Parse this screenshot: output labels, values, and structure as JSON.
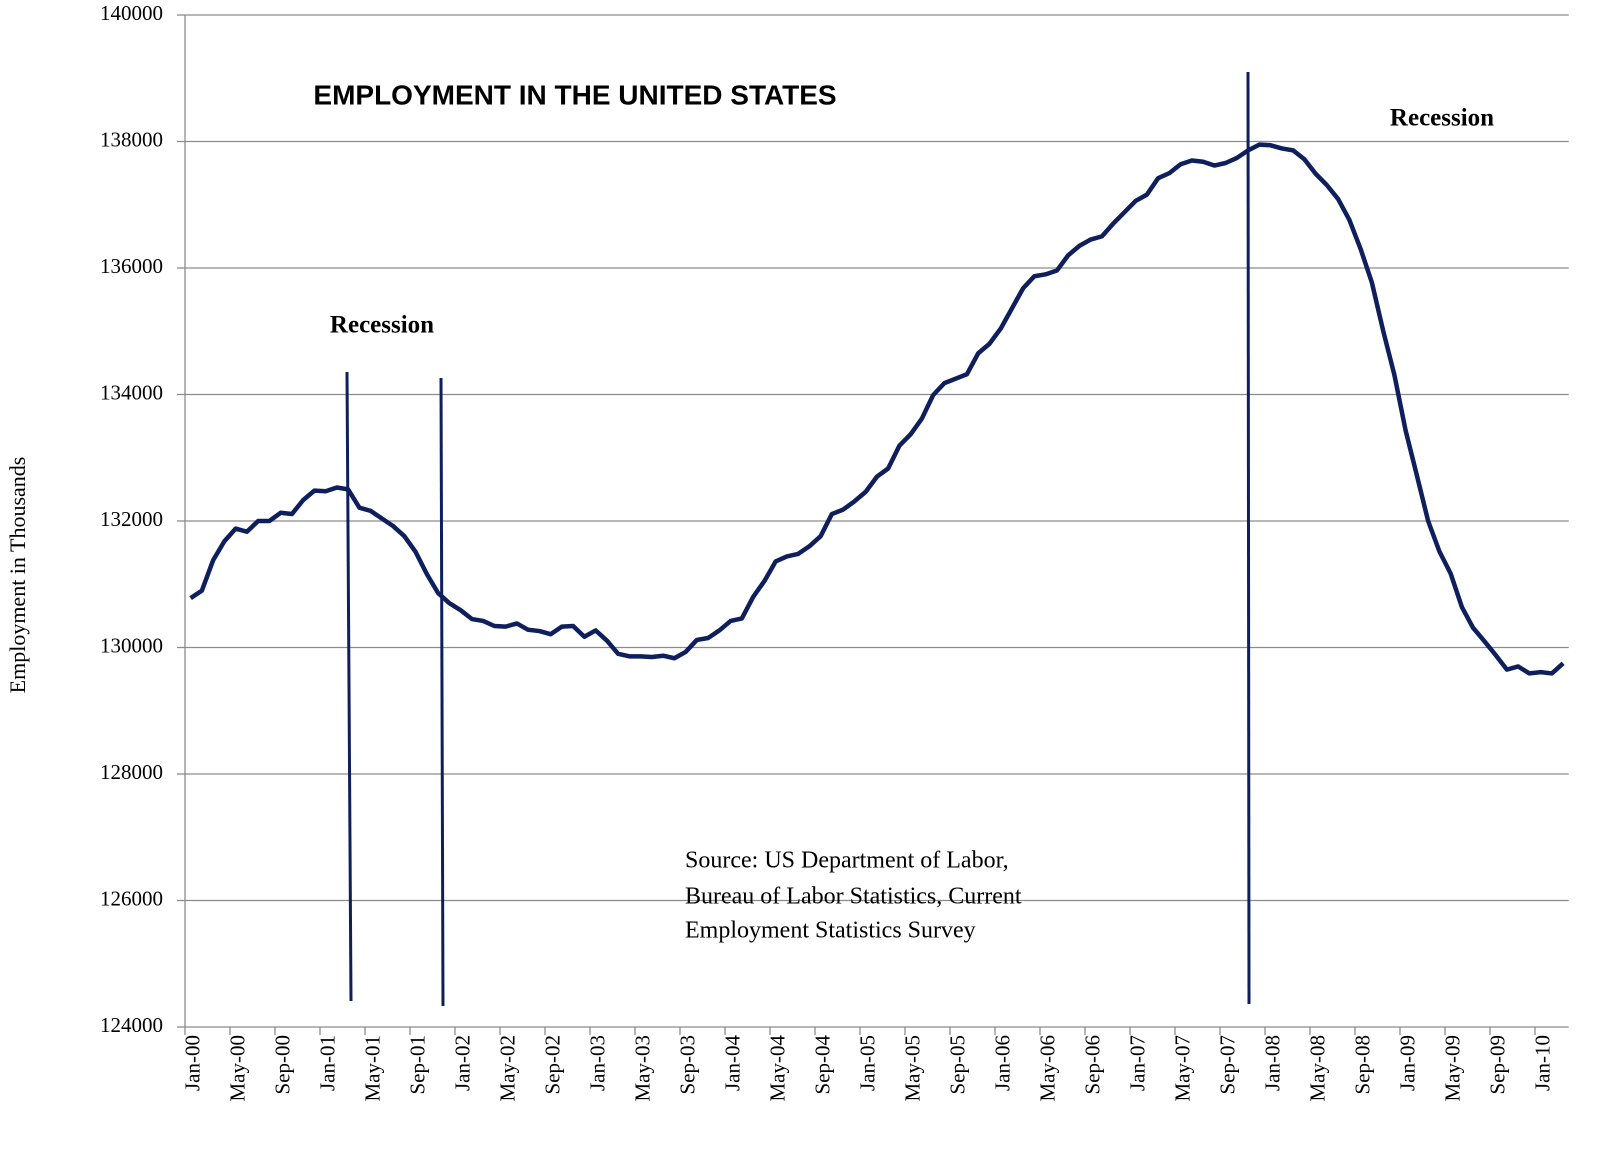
{
  "chart_data": {
    "type": "line",
    "title": "EMPLOYMENT IN THE UNITED STATES",
    "y_label": "Employment in Thousands",
    "annotations": [
      "Recession",
      "Recession"
    ],
    "source": [
      "Source: US Department of Labor,",
      "Bureau of Labor Statistics, Current",
      "Employment Statistics Survey"
    ],
    "categories": [
      "Jan-00",
      null,
      null,
      null,
      "May-00",
      null,
      null,
      null,
      "Sep-00",
      null,
      null,
      null,
      "Jan-01",
      null,
      null,
      null,
      "May-01",
      null,
      null,
      null,
      "Sep-01",
      null,
      null,
      null,
      "Jan-02",
      null,
      null,
      null,
      "May-02",
      null,
      null,
      null,
      "Sep-02",
      null,
      null,
      null,
      "Jan-03",
      null,
      null,
      null,
      "May-03",
      null,
      null,
      null,
      "Sep-03",
      null,
      null,
      null,
      "Jan-04",
      null,
      null,
      null,
      "May-04",
      null,
      null,
      null,
      "Sep-04",
      null,
      null,
      null,
      "Jan-05",
      null,
      null,
      null,
      "May-05",
      null,
      null,
      null,
      "Sep-05",
      null,
      null,
      null,
      "Jan-06",
      null,
      null,
      null,
      "May-06",
      null,
      null,
      null,
      "Sep-06",
      null,
      null,
      null,
      "Jan-07",
      null,
      null,
      null,
      "May-07",
      null,
      null,
      null,
      "Sep-07",
      null,
      null,
      null,
      "Jan-08",
      null,
      null,
      null,
      "May-08",
      null,
      null,
      null,
      "Sep-08",
      null,
      null,
      null,
      "Jan-09",
      null,
      null,
      null,
      "May-09",
      null,
      null,
      null,
      "Sep-09",
      null,
      null,
      null,
      "Jan-10",
      null,
      null
    ],
    "series": [
      {
        "name": "Employment",
        "color": "#0f1f5c",
        "values": [
          130780,
          130900,
          131380,
          131680,
          131880,
          131830,
          132000,
          132000,
          132130,
          132110,
          132330,
          132480,
          132470,
          132530,
          132500,
          132210,
          132160,
          132040,
          131920,
          131760,
          131510,
          131160,
          130860,
          130700,
          130590,
          130450,
          130420,
          130340,
          130330,
          130380,
          130280,
          130260,
          130210,
          130330,
          130340,
          130170,
          130270,
          130110,
          129900,
          129860,
          129860,
          129850,
          129870,
          129830,
          129930,
          130120,
          130150,
          130270,
          130420,
          130460,
          130800,
          131050,
          131360,
          131440,
          131480,
          131600,
          131760,
          132110,
          132180,
          132310,
          132460,
          132700,
          132830,
          133190,
          133370,
          133620,
          133990,
          134180,
          134250,
          134320,
          134650,
          134800,
          135040,
          135360,
          135680,
          135870,
          135900,
          135960,
          136200,
          136350,
          136450,
          136500,
          136700,
          136880,
          137060,
          137160,
          137420,
          137500,
          137640,
          137700,
          137680,
          137620,
          137660,
          137740,
          137860,
          137950,
          137940,
          137890,
          137860,
          137720,
          137490,
          137310,
          137090,
          136760,
          136300,
          135770,
          135010,
          134310,
          133430,
          132720,
          132000,
          131520,
          131170,
          130640,
          130310,
          130100,
          129880,
          129650,
          129700,
          129590,
          129610,
          129590,
          129750
        ]
      }
    ],
    "ylim": [
      124000,
      140000
    ],
    "yticks": [
      124000,
      126000,
      128000,
      130000,
      132000,
      134000,
      136000,
      138000,
      140000
    ],
    "grid": true
  }
}
